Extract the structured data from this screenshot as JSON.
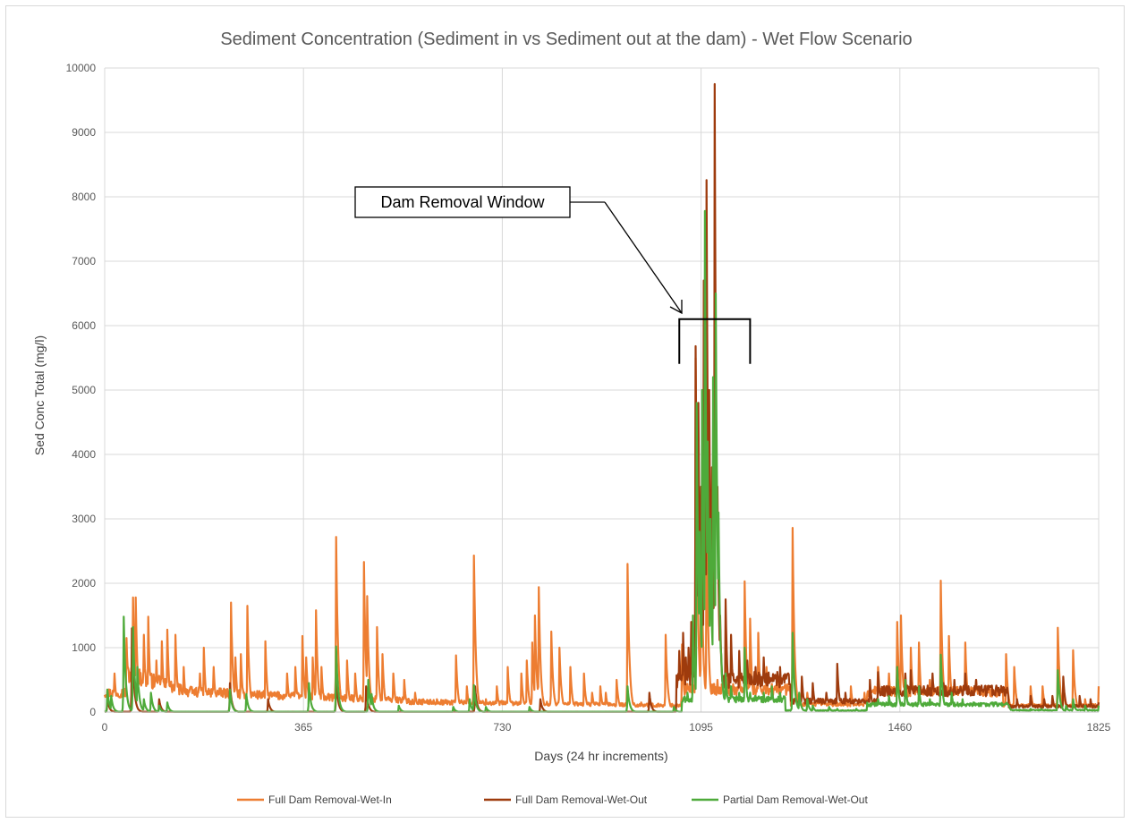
{
  "chart_data": {
    "type": "line",
    "title": "Sediment Concentration (Sediment in vs Sediment out at the dam) - Wet Flow Scenario",
    "xlabel": "Days (24 hr increments)",
    "ylabel": "Sed Conc Total (mg/l)",
    "xlim": [
      0,
      1825
    ],
    "ylim": [
      0,
      10000
    ],
    "x_ticks": [
      0,
      365,
      730,
      1095,
      1460,
      1825
    ],
    "y_ticks": [
      0,
      1000,
      2000,
      3000,
      4000,
      5000,
      6000,
      7000,
      8000,
      9000,
      10000
    ],
    "grid": true,
    "legend_position": "bottom",
    "annotation": {
      "text": "Dam Removal Window",
      "bracket_x": [
        1055,
        1185
      ],
      "bracket_y": 6100
    },
    "series": [
      {
        "name": "Full Dam Removal-Wet-In",
        "color": "#ED7D31",
        "peaks": [
          [
            5,
            350
          ],
          [
            18,
            600
          ],
          [
            40,
            1150
          ],
          [
            52,
            1780
          ],
          [
            57,
            1780
          ],
          [
            72,
            1200
          ],
          [
            80,
            1480
          ],
          [
            95,
            800
          ],
          [
            105,
            1100
          ],
          [
            115,
            1280
          ],
          [
            130,
            1200
          ],
          [
            145,
            700
          ],
          [
            175,
            600
          ],
          [
            182,
            1000
          ],
          [
            200,
            700
          ],
          [
            232,
            1700
          ],
          [
            240,
            850
          ],
          [
            250,
            900
          ],
          [
            262,
            1650
          ],
          [
            288,
            300
          ],
          [
            295,
            1100
          ],
          [
            335,
            600
          ],
          [
            350,
            700
          ],
          [
            363,
            1180
          ],
          [
            370,
            850
          ],
          [
            382,
            850
          ],
          [
            388,
            1580
          ],
          [
            398,
            700
          ],
          [
            425,
            2720
          ],
          [
            445,
            800
          ],
          [
            460,
            600
          ],
          [
            476,
            2330
          ],
          [
            482,
            1800
          ],
          [
            500,
            1320
          ],
          [
            510,
            900
          ],
          [
            530,
            600
          ],
          [
            550,
            500
          ],
          [
            570,
            300
          ],
          [
            585,
            200
          ],
          [
            610,
            200
          ],
          [
            645,
            880
          ],
          [
            665,
            400
          ],
          [
            678,
            2430
          ],
          [
            700,
            200
          ],
          [
            720,
            400
          ],
          [
            740,
            700
          ],
          [
            765,
            600
          ],
          [
            775,
            800
          ],
          [
            785,
            1080
          ],
          [
            790,
            1500
          ],
          [
            797,
            1940
          ],
          [
            820,
            1250
          ],
          [
            835,
            1000
          ],
          [
            855,
            700
          ],
          [
            880,
            600
          ],
          [
            895,
            300
          ],
          [
            910,
            400
          ],
          [
            920,
            300
          ],
          [
            940,
            500
          ],
          [
            960,
            2300
          ],
          [
            985,
            150
          ],
          [
            1000,
            200
          ],
          [
            1030,
            1200
          ],
          [
            1060,
            1050
          ],
          [
            1075,
            450
          ],
          [
            1085,
            5500
          ],
          [
            1095,
            3200
          ],
          [
            1105,
            3200
          ],
          [
            1125,
            500
          ],
          [
            1140,
            800
          ],
          [
            1165,
            700
          ],
          [
            1175,
            2030
          ],
          [
            1185,
            1450
          ],
          [
            1200,
            1230
          ],
          [
            1215,
            700
          ],
          [
            1235,
            600
          ],
          [
            1263,
            2860
          ],
          [
            1290,
            300
          ],
          [
            1320,
            200
          ],
          [
            1345,
            150
          ],
          [
            1370,
            400
          ],
          [
            1395,
            300
          ],
          [
            1420,
            700
          ],
          [
            1440,
            600
          ],
          [
            1455,
            1400
          ],
          [
            1462,
            1500
          ],
          [
            1480,
            1000
          ],
          [
            1495,
            1080
          ],
          [
            1515,
            500
          ],
          [
            1535,
            2040
          ],
          [
            1550,
            1180
          ],
          [
            1580,
            1080
          ],
          [
            1600,
            500
          ],
          [
            1620,
            400
          ],
          [
            1655,
            900
          ],
          [
            1670,
            700
          ],
          [
            1700,
            400
          ],
          [
            1722,
            400
          ],
          [
            1750,
            1310
          ],
          [
            1760,
            400
          ],
          [
            1778,
            960
          ],
          [
            1800,
            200
          ],
          [
            1825,
            400
          ]
        ]
      },
      {
        "name": "Full Dam Removal-Wet-Out",
        "color": "#9E3B0D",
        "peaks": [
          [
            5,
            200
          ],
          [
            50,
            1300
          ],
          [
            100,
            200
          ],
          [
            230,
            450
          ],
          [
            300,
            200
          ],
          [
            425,
            500
          ],
          [
            480,
            400
          ],
          [
            680,
            400
          ],
          [
            800,
            200
          ],
          [
            1000,
            300
          ],
          [
            1055,
            950
          ],
          [
            1062,
            1230
          ],
          [
            1067,
            850
          ],
          [
            1072,
            1000
          ],
          [
            1077,
            1400
          ],
          [
            1085,
            5680
          ],
          [
            1090,
            4800
          ],
          [
            1095,
            3500
          ],
          [
            1100,
            6700
          ],
          [
            1105,
            8260
          ],
          [
            1110,
            5000
          ],
          [
            1115,
            3800
          ],
          [
            1120,
            9750
          ],
          [
            1125,
            3500
          ],
          [
            1130,
            1500
          ],
          [
            1140,
            1750
          ],
          [
            1150,
            1200
          ],
          [
            1165,
            950
          ],
          [
            1180,
            800
          ],
          [
            1195,
            700
          ],
          [
            1210,
            850
          ],
          [
            1240,
            700
          ],
          [
            1255,
            600
          ],
          [
            1280,
            550
          ],
          [
            1300,
            450
          ],
          [
            1325,
            300
          ],
          [
            1345,
            750
          ],
          [
            1360,
            300
          ],
          [
            1385,
            200
          ],
          [
            1405,
            500
          ],
          [
            1420,
            620
          ],
          [
            1440,
            400
          ],
          [
            1455,
            700
          ],
          [
            1470,
            600
          ],
          [
            1480,
            650
          ],
          [
            1500,
            300
          ],
          [
            1520,
            600
          ],
          [
            1540,
            450
          ],
          [
            1560,
            500
          ],
          [
            1580,
            600
          ],
          [
            1600,
            500
          ],
          [
            1625,
            300
          ],
          [
            1640,
            250
          ],
          [
            1655,
            300
          ],
          [
            1675,
            200
          ],
          [
            1700,
            250
          ],
          [
            1725,
            200
          ],
          [
            1740,
            250
          ],
          [
            1760,
            550
          ],
          [
            1790,
            250
          ],
          [
            1810,
            200
          ],
          [
            1825,
            150
          ]
        ]
      },
      {
        "name": "Partial Dam Removal-Wet-Out",
        "color": "#4EAA3A",
        "peaks": [
          [
            5,
            350
          ],
          [
            12,
            250
          ],
          [
            35,
            1480
          ],
          [
            52,
            1320
          ],
          [
            60,
            700
          ],
          [
            72,
            200
          ],
          [
            85,
            300
          ],
          [
            100,
            100
          ],
          [
            115,
            150
          ],
          [
            230,
            350
          ],
          [
            260,
            280
          ],
          [
            375,
            450
          ],
          [
            425,
            1020
          ],
          [
            484,
            500
          ],
          [
            490,
            280
          ],
          [
            540,
            100
          ],
          [
            640,
            80
          ],
          [
            670,
            200
          ],
          [
            678,
            420
          ],
          [
            700,
            80
          ],
          [
            780,
            80
          ],
          [
            960,
            400
          ],
          [
            1045,
            80
          ],
          [
            1070,
            300
          ],
          [
            1080,
            1500
          ],
          [
            1087,
            4800
          ],
          [
            1092,
            2800
          ],
          [
            1097,
            5000
          ],
          [
            1102,
            7780
          ],
          [
            1107,
            4200
          ],
          [
            1112,
            3000
          ],
          [
            1117,
            5200
          ],
          [
            1122,
            6500
          ],
          [
            1127,
            3100
          ],
          [
            1132,
            900
          ],
          [
            1140,
            600
          ],
          [
            1150,
            400
          ],
          [
            1165,
            300
          ],
          [
            1175,
            1000
          ],
          [
            1185,
            300
          ],
          [
            1195,
            250
          ],
          [
            1210,
            300
          ],
          [
            1225,
            400
          ],
          [
            1240,
            300
          ],
          [
            1263,
            1230
          ],
          [
            1275,
            300
          ],
          [
            1290,
            200
          ],
          [
            1300,
            100
          ],
          [
            1330,
            80
          ],
          [
            1345,
            50
          ],
          [
            1380,
            50
          ],
          [
            1420,
            200
          ],
          [
            1440,
            250
          ],
          [
            1455,
            700
          ],
          [
            1470,
            500
          ],
          [
            1495,
            400
          ],
          [
            1515,
            200
          ],
          [
            1535,
            890
          ],
          [
            1555,
            300
          ],
          [
            1575,
            200
          ],
          [
            1595,
            150
          ],
          [
            1620,
            100
          ],
          [
            1660,
            100
          ],
          [
            1700,
            50
          ],
          [
            1720,
            50
          ],
          [
            1750,
            650
          ],
          [
            1765,
            100
          ],
          [
            1778,
            200
          ],
          [
            1800,
            100
          ],
          [
            1825,
            100
          ]
        ]
      }
    ]
  }
}
